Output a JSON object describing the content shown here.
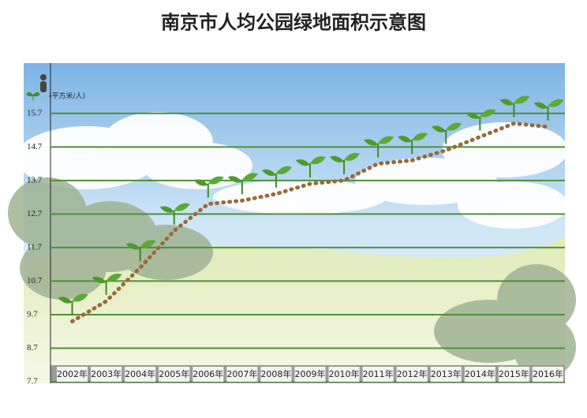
{
  "chart_data": {
    "type": "line",
    "title": "南京市人均公园绿地面积示意图",
    "y_label": "(平方米/人)",
    "categories": [
      "2002年",
      "2003年",
      "2004年",
      "2005年",
      "2006年",
      "2007年",
      "2008年",
      "2009年",
      "2010年",
      "2011年",
      "2012年",
      "2013年",
      "2014年",
      "2015年",
      "2016年"
    ],
    "series": [
      {
        "color": "#9b6a3a",
        "values": [
          9.5,
          10.1,
          11.1,
          12.2,
          13.0,
          13.1,
          13.3,
          13.6,
          13.7,
          14.2,
          14.3,
          14.6,
          15.0,
          15.4,
          15.3
        ]
      }
    ],
    "ylim": [
      7.7,
      17.2
    ],
    "yticks": [
      7.7,
      8.7,
      9.7,
      10.7,
      11.7,
      12.7,
      13.7,
      14.7,
      15.7
    ],
    "grid": true,
    "grid_color": "#4f8f3a"
  }
}
